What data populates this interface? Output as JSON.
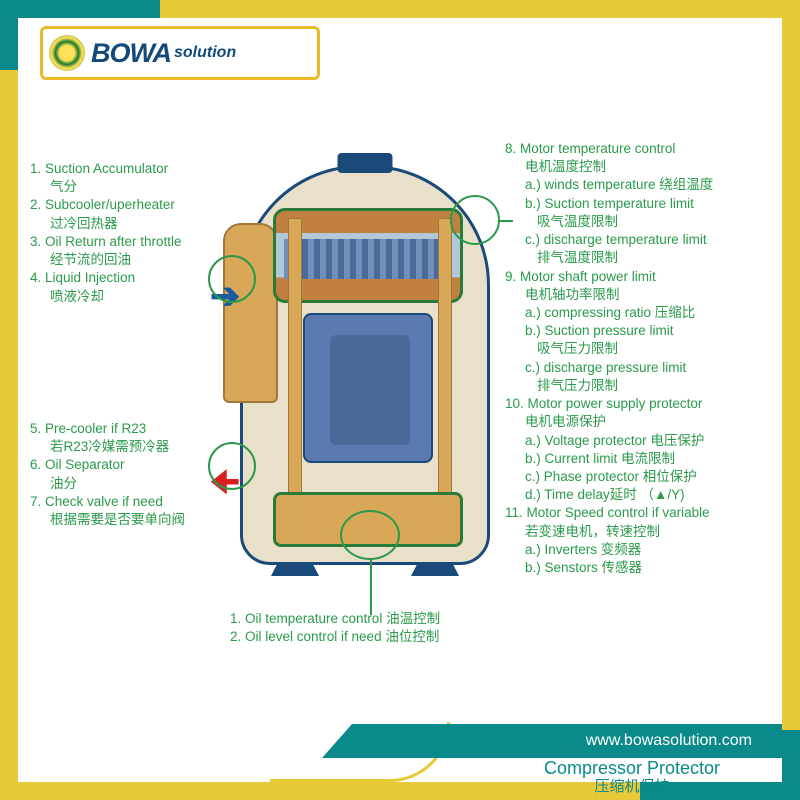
{
  "brand": {
    "name": "BOWA",
    "suffix": "solution"
  },
  "colors": {
    "frame_gold": "#e8c938",
    "frame_teal": "#0a8a8a",
    "label_green": "#2a9a4a",
    "outline_navy": "#1a4a7a",
    "copper": "#d8a858",
    "steel": "#5a7ab0",
    "shell": "#e8e0c8",
    "arrow_blue": "#1a5aa0",
    "arrow_red": "#d82020"
  },
  "left_upper": [
    "1. Suction Accumulator",
    "    气分",
    "2. Subcooler/uperheater",
    "    过冷回热器",
    "3. Oil Return after throttle",
    "    经节流的回油",
    "4. Liquid Injection",
    "    喷液冷却"
  ],
  "left_lower": [
    "5. Pre-cooler if R23",
    "    若R23冷媒需预冷器",
    "6. Oil Separator",
    "    油分",
    "7. Check valve if need",
    "    根据需要是否要单向阀"
  ],
  "right": [
    {
      "t": "8. Motor temperature control",
      "i": 0
    },
    {
      "t": "电机温度控制",
      "i": 1
    },
    {
      "t": "a.) winds temperature 绕组温度",
      "i": 1
    },
    {
      "t": "b.) Suction temperature limit",
      "i": 1
    },
    {
      "t": "吸气温度限制",
      "i": 2
    },
    {
      "t": "c.) discharge temperature limit",
      "i": 1
    },
    {
      "t": "排气温度限制",
      "i": 2
    },
    {
      "t": "9. Motor shaft power limit",
      "i": 0
    },
    {
      "t": "电机轴功率限制",
      "i": 1
    },
    {
      "t": "a.) compressing ratio 压缩比",
      "i": 1
    },
    {
      "t": "b.) Suction pressure limit",
      "i": 1
    },
    {
      "t": "吸气压力限制",
      "i": 2
    },
    {
      "t": "c.) discharge pressure limit",
      "i": 1
    },
    {
      "t": "排气压力限制",
      "i": 2
    },
    {
      "t": "10. Motor power supply protector",
      "i": 0
    },
    {
      "t": "电机电源保护",
      "i": 1
    },
    {
      "t": "a.) Voltage protector 电压保护",
      "i": 1
    },
    {
      "t": "b.) Current limit 电流限制",
      "i": 1
    },
    {
      "t": "c.) Phase protector 相位保护",
      "i": 1
    },
    {
      "t": "d.) Time delay延时 （▲/Y)",
      "i": 1
    },
    {
      "t": "11. Motor Speed control if variable",
      "i": 0
    },
    {
      "t": "若变速电机，转速控制",
      "i": 1
    },
    {
      "t": "a.) Inverters 变频器",
      "i": 1
    },
    {
      "t": "b.) Senstors 传感器",
      "i": 1
    }
  ],
  "bottom": [
    "1. Oil temperature control 油温控制",
    "2. Oil level control if need 油位控制"
  ],
  "footer": {
    "url": "www.bowasolution.com",
    "title_en": "Compressor Protector",
    "title_cn": "压缩机保护"
  }
}
